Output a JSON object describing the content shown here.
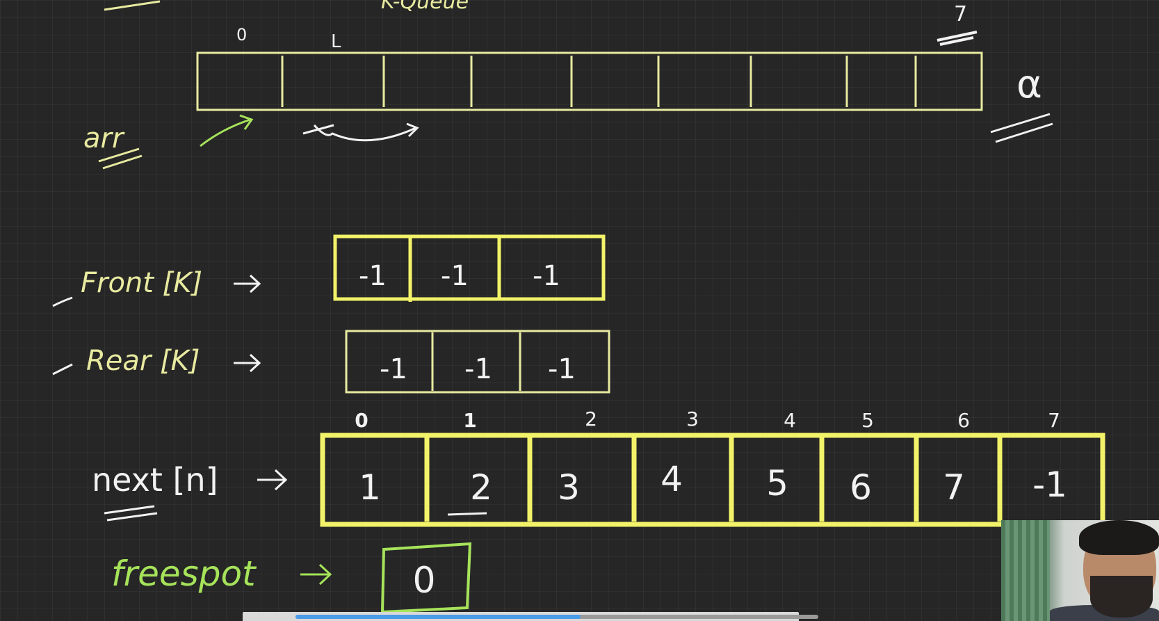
{
  "header": {
    "title": "K-Queue"
  },
  "arr": {
    "label": "arr",
    "index_start": "0",
    "index_mid": "L",
    "index_end": "7",
    "cell_count": 9,
    "note_right": "α"
  },
  "front": {
    "label": "Front [K]",
    "values": [
      "-1",
      "-1",
      "-1"
    ]
  },
  "rear": {
    "label": "Rear [K]",
    "values": [
      "-1",
      "-1",
      "-1"
    ]
  },
  "next": {
    "label": "next [n]",
    "indices": [
      "0",
      "1",
      "2",
      "3",
      "4",
      "5",
      "6",
      "7"
    ],
    "values": [
      "1",
      "2",
      "3",
      "4",
      "5",
      "6",
      "7",
      "-1"
    ]
  },
  "freespot": {
    "label": "freespot",
    "value": "0"
  },
  "colors": {
    "light_yellow": "#e8eaa0",
    "bright_yellow": "#f3f36a",
    "green": "#a6e35a",
    "white": "#f2f2f2"
  },
  "icons": [
    "arrow-right-icon",
    "curved-arrow-icon"
  ]
}
